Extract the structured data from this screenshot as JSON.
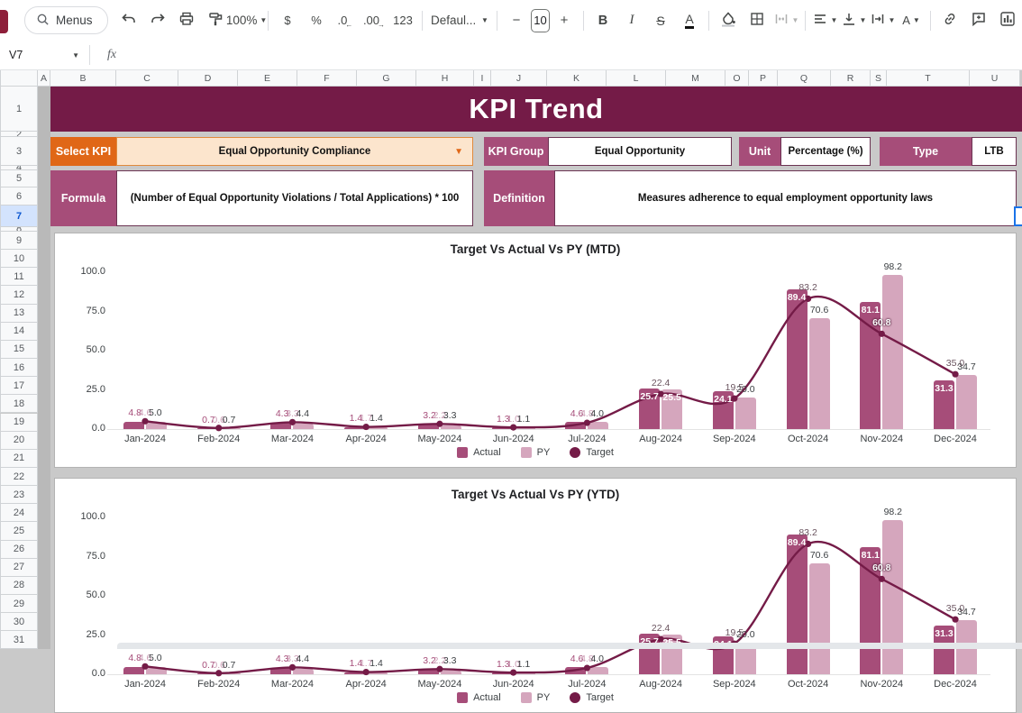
{
  "app": {
    "selected_cell": "V7",
    "fx_label": "fx"
  },
  "toolbar": {
    "menus_label": "Menus",
    "zoom_value": "100%",
    "currency_label": "$",
    "percent_label": "%",
    "decrease_decimal_label": ".0",
    "increase_decimal_label": ".00",
    "more_formats_label": "123",
    "font_family_value": "Defaul...",
    "minus_label": "−",
    "font_size_value": "10",
    "plus_label": "+",
    "bold_label": "B",
    "italic_label": "I",
    "strikethrough_label": "S",
    "text_color_label": "A",
    "text_rotation_label": "A"
  },
  "grid": {
    "columns": [
      "A",
      "B",
      "C",
      "D",
      "E",
      "F",
      "G",
      "H",
      "I",
      "J",
      "K",
      "L",
      "M",
      "O",
      "P",
      "Q",
      "R",
      "S",
      "T",
      "U"
    ],
    "row_numbers": [
      "1",
      "2",
      "3",
      "4",
      "5",
      "6",
      "7",
      "8",
      "9",
      "10",
      "11",
      "12",
      "13",
      "14",
      "15",
      "16",
      "17",
      "18",
      "19",
      "20",
      "21",
      "22",
      "23",
      "24",
      "25",
      "26",
      "27",
      "28",
      "29",
      "30",
      "31"
    ],
    "selected_row": "7"
  },
  "banner": {
    "title": "KPI Trend"
  },
  "panel": {
    "select_kpi_label": "Select KPI",
    "select_kpi_value": "Equal Opportunity Compliance",
    "kpi_group_label": "KPI Group",
    "kpi_group_value": "Equal Opportunity",
    "unit_label": "Unit",
    "unit_value": "Percentage (%)",
    "type_label": "Type",
    "type_value": "LTB",
    "formula_label": "Formula",
    "formula_value": "(Number of Equal Opportunity Violations / Total Applications) * 100",
    "definition_label": "Definition",
    "definition_value": "Measures adherence to equal employment opportunity laws"
  },
  "colors": {
    "banner_bg": "#741B47",
    "label_pink": "#A64D79",
    "select_orange": "#E06717",
    "select_fill": "#FCE5CD",
    "actual": "#A64D79",
    "py": "#D5A6BD",
    "target": "#741B47",
    "row_highlight": "#D3E3FD",
    "selection_blue": "#1A73E8"
  },
  "chart_data": [
    {
      "type": "combo-bar-line",
      "title": "Target Vs Actual Vs PY (MTD)",
      "categories": [
        "Jan-2024",
        "Feb-2024",
        "Mar-2024",
        "Apr-2024",
        "May-2024",
        "Jun-2024",
        "Jul-2024",
        "Aug-2024",
        "Sep-2024",
        "Oct-2024",
        "Nov-2024",
        "Dec-2024"
      ],
      "series": [
        {
          "name": "Actual",
          "type": "bar",
          "color": "#A64D79",
          "values": [
            4.8,
            0.7,
            4.3,
            1.4,
            3.2,
            1.3,
            4.6,
            25.7,
            24.1,
            89.4,
            81.1,
            31.3
          ]
        },
        {
          "name": "PY",
          "type": "bar",
          "color": "#D5A6BD",
          "values": [
            4.6,
            0.6,
            3.3,
            1.7,
            2.2,
            1.0,
            4.8,
            25.5,
            20.0,
            70.6,
            98.2,
            34.7
          ]
        },
        {
          "name": "Target",
          "type": "line",
          "color": "#741B47",
          "values": [
            5.0,
            0.7,
            4.4,
            1.4,
            3.3,
            1.1,
            4.0,
            22.4,
            19.5,
            83.2,
            60.8,
            35.0
          ]
        }
      ],
      "ylim": [
        0,
        100
      ],
      "yticks": [
        100,
        75,
        50,
        25,
        0
      ],
      "ytick_labels": [
        "100.0",
        "75.0",
        "50.0",
        "25.0",
        "0.0"
      ],
      "legend_position": "bottom",
      "grid": false
    },
    {
      "type": "combo-bar-line",
      "title": "Target Vs Actual Vs PY (YTD)",
      "categories": [
        "Jan-2024",
        "Feb-2024",
        "Mar-2024",
        "Apr-2024",
        "May-2024",
        "Jun-2024",
        "Jul-2024",
        "Aug-2024",
        "Sep-2024",
        "Oct-2024",
        "Nov-2024",
        "Dec-2024"
      ],
      "series": [
        {
          "name": "Actual",
          "type": "bar",
          "color": "#A64D79",
          "values": [
            4.8,
            0.7,
            4.3,
            1.4,
            3.2,
            1.3,
            4.6,
            25.7,
            24.1,
            89.4,
            81.1,
            31.3
          ]
        },
        {
          "name": "PY",
          "type": "bar",
          "color": "#D5A6BD",
          "values": [
            4.6,
            0.6,
            3.3,
            1.7,
            2.2,
            1.0,
            4.8,
            25.5,
            20.0,
            70.6,
            98.2,
            34.7
          ]
        },
        {
          "name": "Target",
          "type": "line",
          "color": "#741B47",
          "values": [
            5.0,
            0.7,
            4.4,
            1.4,
            3.3,
            1.1,
            4.0,
            22.4,
            19.5,
            83.2,
            60.8,
            35.0
          ]
        }
      ],
      "ylim": [
        0,
        100
      ],
      "yticks": [
        100,
        75,
        50,
        25,
        0
      ],
      "ytick_labels": [
        "100.0",
        "75.0",
        "50.0",
        "25.0",
        "0.0"
      ],
      "legend_position": "bottom",
      "grid": false
    }
  ]
}
